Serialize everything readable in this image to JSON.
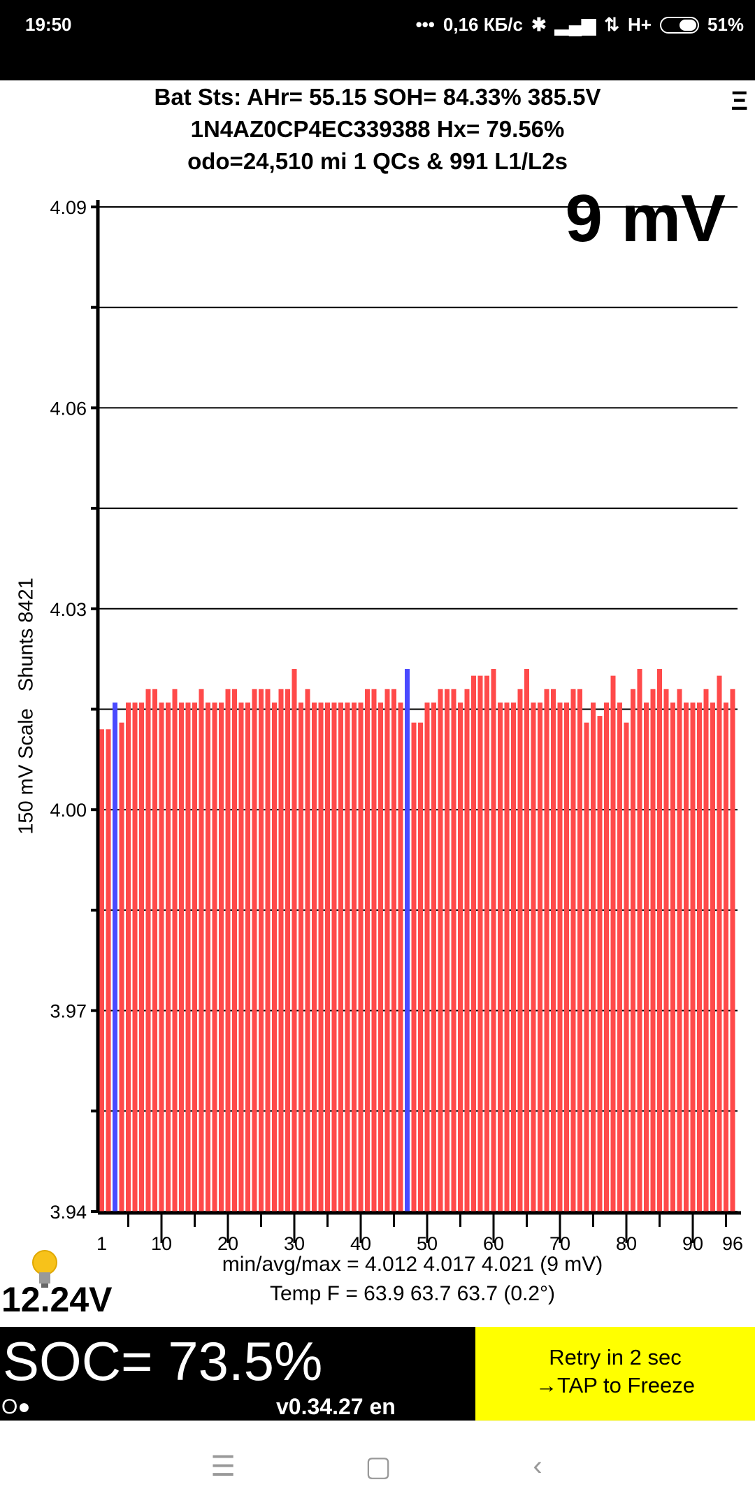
{
  "status_bar": {
    "time": "19:50",
    "dots": "•••",
    "net_speed": "0,16 КБ/с",
    "bluetooth": "bluetooth-icon",
    "signal": "signal-icon",
    "data": "⇅",
    "network": "H+",
    "battery": "51%"
  },
  "header": {
    "line1": "Bat Sts:  AHr= 55.15  SOH= 84.33%   385.5V",
    "line2": "1N4AZ0CP4EC339388   Hx= 79.56%",
    "line3": "odo=24,510 mi  1 QCs & 991 L1/L2s",
    "menu": "Ξ"
  },
  "spread_label": "9 mV",
  "y_axis_title": "150 mV Scale   Shunts 8421",
  "stats": {
    "minavgmax": "min/avg/max = 4.012 4.017 4.021  (9 mV)",
    "temp": "Temp F = 63.9  63.7  63.7  (0.2°)"
  },
  "aux_voltage": "12.24V",
  "soc": {
    "value": "SOC= 73.5%",
    "indicator": "O●",
    "version": "v0.34.27 en"
  },
  "retry": {
    "line1": "Retry in 2 sec",
    "line2": "→TAP to Freeze"
  },
  "colors": {
    "bar": "#ff4a4a",
    "shunt": "#4a4aff",
    "retry_bg": "#ffff00"
  },
  "chart_data": {
    "type": "bar",
    "title": "9 mV",
    "ylabel": "150 mV Scale   Shunts 8421",
    "xlabel": "",
    "ylim": [
      3.94,
      4.09
    ],
    "yticks": [
      "4.09",
      "4.06",
      "4.03",
      "4.00",
      "3.97",
      "3.94"
    ],
    "xticks": [
      "1",
      "10",
      "20",
      "30",
      "40",
      "50",
      "60",
      "70",
      "80",
      "90",
      "96"
    ],
    "grid": true,
    "shunt_cells": [
      3,
      47
    ],
    "values": [
      4.012,
      4.012,
      4.016,
      4.013,
      4.016,
      4.016,
      4.016,
      4.018,
      4.018,
      4.016,
      4.016,
      4.018,
      4.016,
      4.016,
      4.016,
      4.018,
      4.016,
      4.016,
      4.016,
      4.018,
      4.018,
      4.016,
      4.016,
      4.018,
      4.018,
      4.018,
      4.016,
      4.018,
      4.018,
      4.021,
      4.016,
      4.018,
      4.016,
      4.016,
      4.016,
      4.016,
      4.016,
      4.016,
      4.016,
      4.016,
      4.018,
      4.018,
      4.016,
      4.018,
      4.018,
      4.016,
      4.021,
      4.013,
      4.013,
      4.016,
      4.016,
      4.018,
      4.018,
      4.018,
      4.016,
      4.018,
      4.02,
      4.02,
      4.02,
      4.021,
      4.016,
      4.016,
      4.016,
      4.018,
      4.021,
      4.016,
      4.016,
      4.018,
      4.018,
      4.016,
      4.016,
      4.018,
      4.018,
      4.013,
      4.016,
      4.014,
      4.016,
      4.02,
      4.016,
      4.013,
      4.018,
      4.021,
      4.016,
      4.018,
      4.021,
      4.018,
      4.016,
      4.018,
      4.016,
      4.016,
      4.016,
      4.018,
      4.016,
      4.02,
      4.016,
      4.018
    ]
  }
}
